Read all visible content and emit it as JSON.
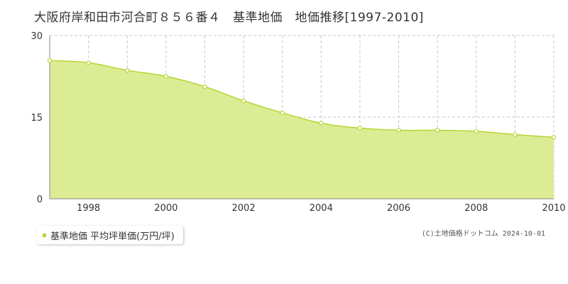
{
  "title": "大阪府岸和田市河合町８５６番４　基準地価　地価推移[1997-2010]",
  "legend_label": "基準地価 平均坪単価(万円/坪)",
  "copyright": "(C)土地価格ドットコム 2024-10-01",
  "colors": {
    "fill": "#dcec94",
    "line": "#b4d632",
    "grid": "#c8c8c8",
    "axis": "#888888",
    "marker_fill": "#ffffff"
  },
  "chart_data": {
    "type": "area",
    "x": [
      1997,
      1998,
      1999,
      2000,
      2001,
      2002,
      2003,
      2004,
      2005,
      2006,
      2007,
      2008,
      2009,
      2010
    ],
    "series": [
      {
        "values": [
          25.4,
          25.0,
          23.6,
          22.5,
          20.6,
          18.0,
          15.8,
          13.9,
          13.0,
          12.6,
          12.6,
          12.4,
          11.8,
          11.3
        ]
      }
    ],
    "x_tick_labels": [
      "1998",
      "2000",
      "2002",
      "2004",
      "2006",
      "2008",
      "2010"
    ],
    "y_tick_labels": [
      "0",
      "15",
      "30"
    ],
    "xlim": [
      1997,
      2010
    ],
    "ylim": [
      0,
      30
    ],
    "xlabel": "",
    "ylabel": "",
    "grid": true,
    "legend_position": "bottom-left"
  }
}
